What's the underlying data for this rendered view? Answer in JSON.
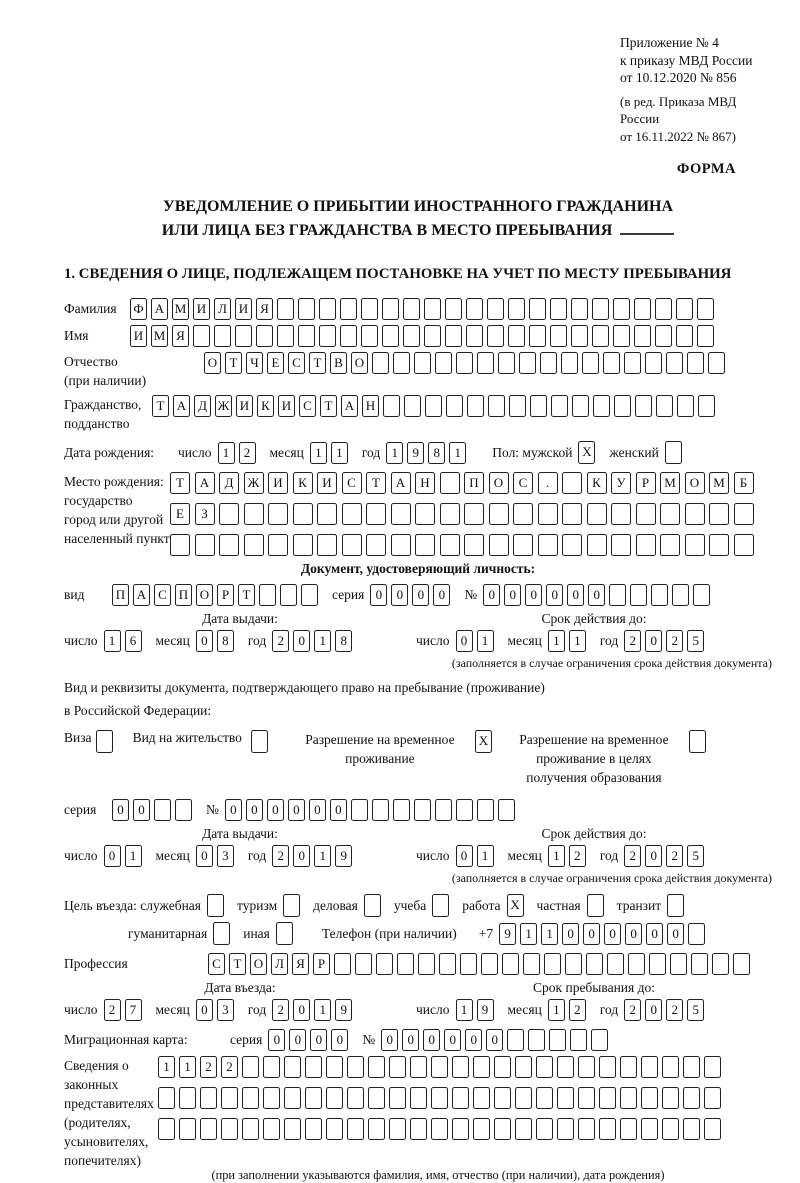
{
  "header": {
    "appendix_lines": [
      "Приложение № 4",
      "к приказу МВД России",
      "от 10.12.2020 № 856"
    ],
    "edition_lines": [
      "(в ред. Приказа МВД России",
      "от 16.11.2022 № 867)"
    ],
    "form_label": "ФОРМА"
  },
  "title": {
    "line1": "УВЕДОМЛЕНИЕ О ПРИБЫТИИ ИНОСТРАННОГО ГРАЖДАНИНА",
    "line2": "ИЛИ ЛИЦА БЕЗ ГРАЖДАНСТВА В МЕСТО ПРЕБЫВАНИЯ"
  },
  "section_heading": "1. СВЕДЕНИЯ О ЛИЦЕ, ПОДЛЕЖАЩЕМ ПОСТАНОВКЕ НА УЧЕТ ПО МЕСТУ ПРЕБЫВАНИЯ",
  "labels": {
    "surname": "Фамилия",
    "given_name": "Имя",
    "patronymic_l1": "Отчество",
    "patronymic_l2": "(при наличии)",
    "citizenship_l1": "Гражданство,",
    "citizenship_l2": "подданство",
    "birth_date": "Дата рождения:",
    "day": "число",
    "month": "месяц",
    "year": "год",
    "sex_male": "Пол: мужской",
    "sex_female": "женский",
    "birth_place_l1": "Место рождения:",
    "birth_place_l2": "государство",
    "birth_place_l3": "город или другой",
    "birth_place_l4": "населенный пункт",
    "identity_doc_heading": "Документ, удостоверяющий личность:",
    "doc_type": "вид",
    "series": "серия",
    "number_sign": "№",
    "issue_date": "Дата выдачи:",
    "valid_until": "Срок действия до:",
    "limited_validity_note": "(заполняется в случае ограничения срока действия документа)",
    "residence_doc_l1": "Вид и реквизиты документа, подтверждающего право на пребывание (проживание)",
    "residence_doc_l2": "в Российской Федерации:",
    "visa": "Виза",
    "residence_permit": "Вид на жительство",
    "temp_residence": "Разрешение на временное проживание",
    "temp_residence_edu": "Разрешение на временное проживание в целях получения образования",
    "entry_purpose": "Цель въезда: служебная",
    "tourism": "туризм",
    "business": "деловая",
    "study": "учеба",
    "work": "работа",
    "private": "частная",
    "transit": "транзит",
    "humanitarian": "гуманитарная",
    "other": "иная",
    "phone": "Телефон (при наличии)",
    "phone_prefix": "+7",
    "profession": "Профессия",
    "entry_date": "Дата въезда:",
    "stay_until": "Срок пребывания до:",
    "migration_card": "Миграционная карта:",
    "legal_reps_lines": [
      "Сведения о",
      "законных",
      "представителях",
      "(родителях,",
      "усыновителях,",
      "попечителях)"
    ],
    "legal_reps_note": "(при заполнении указываются фамилия, имя, отчество (при наличии), дата рождения)"
  },
  "fields": {
    "surname": {
      "value": "ФАМИЛИЯ",
      "length": 28
    },
    "given_name": {
      "value": "ИМЯ",
      "length": 28
    },
    "patronymic": {
      "value": "ОТЧЕСТВО",
      "length": 25
    },
    "citizenship": {
      "value": "ТАДЖИКИСТАН",
      "length": 27
    },
    "birth_day": {
      "value": "12",
      "length": 2
    },
    "birth_month": {
      "value": "11",
      "length": 2
    },
    "birth_year": {
      "value": "1981",
      "length": 4
    },
    "sex_male_box": {
      "value": "X",
      "length": 1
    },
    "sex_female_box": {
      "value": "",
      "length": 1
    },
    "birth_place_row1": {
      "value": "ТАДЖИКИСТАН ПОС. КУРМОМБ",
      "length": 24
    },
    "birth_place_row2": {
      "value": "ЕЗ",
      "length": 24
    },
    "birth_place_row3": {
      "value": "",
      "length": 24
    },
    "identity_doc_type": {
      "value": "ПАСПОРТ",
      "length": 10
    },
    "identity_series": {
      "value": "0000",
      "length": 4
    },
    "identity_number": {
      "value": "000000",
      "length": 11
    },
    "identity_issue_day": {
      "value": "16",
      "length": 2
    },
    "identity_issue_month": {
      "value": "08",
      "length": 2
    },
    "identity_issue_year": {
      "value": "2018",
      "length": 4
    },
    "identity_valid_day": {
      "value": "01",
      "length": 2
    },
    "identity_valid_month": {
      "value": "11",
      "length": 2
    },
    "identity_valid_year": {
      "value": "2025",
      "length": 4
    },
    "visa_box": {
      "value": "",
      "length": 1
    },
    "residence_permit_box": {
      "value": "",
      "length": 1
    },
    "temp_residence_box": {
      "value": "X",
      "length": 1
    },
    "temp_residence_edu_box": {
      "value": "",
      "length": 1
    },
    "residence_series": {
      "value": "00",
      "length": 4
    },
    "residence_number": {
      "value": "000000",
      "length": 14
    },
    "residence_issue_day": {
      "value": "01",
      "length": 2
    },
    "residence_issue_month": {
      "value": "03",
      "length": 2
    },
    "residence_issue_year": {
      "value": "2019",
      "length": 4
    },
    "residence_valid_day": {
      "value": "01",
      "length": 2
    },
    "residence_valid_month": {
      "value": "12",
      "length": 2
    },
    "residence_valid_year": {
      "value": "2025",
      "length": 4
    },
    "purpose_official_box": {
      "value": "",
      "length": 1
    },
    "purpose_tourism_box": {
      "value": "",
      "length": 1
    },
    "purpose_business_box": {
      "value": "",
      "length": 1
    },
    "purpose_study_box": {
      "value": "",
      "length": 1
    },
    "purpose_work_box": {
      "value": "X",
      "length": 1
    },
    "purpose_private_box": {
      "value": "",
      "length": 1
    },
    "purpose_transit_box": {
      "value": "",
      "length": 1
    },
    "purpose_humanitarian_box": {
      "value": "",
      "length": 1
    },
    "purpose_other_box": {
      "value": "",
      "length": 1
    },
    "phone_number": {
      "value": "911000000",
      "length": 10
    },
    "profession": {
      "value": "СТОЛЯР",
      "length": 26
    },
    "entry_day": {
      "value": "27",
      "length": 2
    },
    "entry_month": {
      "value": "03",
      "length": 2
    },
    "entry_year": {
      "value": "2019",
      "length": 4
    },
    "stay_day": {
      "value": "19",
      "length": 2
    },
    "stay_month": {
      "value": "12",
      "length": 2
    },
    "stay_year": {
      "value": "2025",
      "length": 4
    },
    "migration_series": {
      "value": "0000",
      "length": 4
    },
    "migration_number": {
      "value": "000000",
      "length": 11
    },
    "legal_reps_row1": {
      "value": "1122",
      "length": 27
    },
    "legal_reps_row2": {
      "value": "",
      "length": 27
    },
    "legal_reps_row3": {
      "value": "",
      "length": 27
    }
  }
}
